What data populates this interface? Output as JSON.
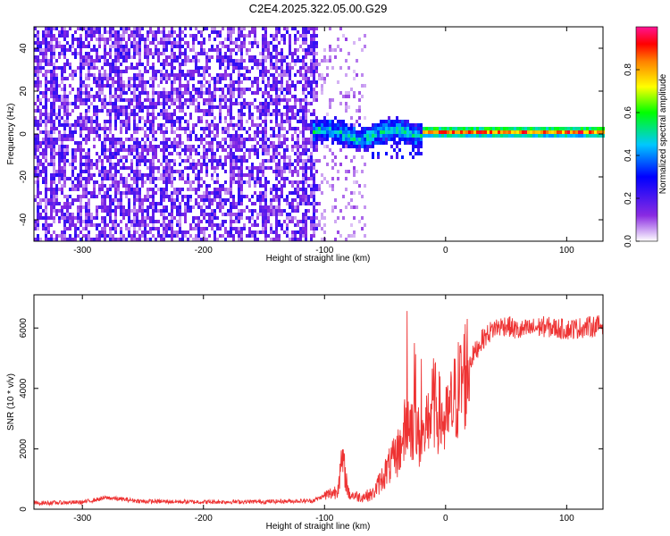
{
  "figure_title": "C2E4.2025.322.05.00.G29",
  "chart_data": [
    {
      "type": "heatmap",
      "name": "spectrogram",
      "xlabel": "Height of straight line (km)",
      "ylabel": "Frequency (Hz)",
      "xlim": [
        -340,
        130
      ],
      "ylim": [
        -50,
        50
      ],
      "xticks": [
        -300,
        -200,
        -100,
        0,
        100
      ],
      "yticks": [
        -40,
        -20,
        0,
        20,
        40
      ],
      "xtick_labels": [
        "-300",
        "-200",
        "-100",
        "0",
        "100"
      ],
      "ytick_labels": [
        "-40",
        "-20",
        "0",
        "20",
        "40"
      ],
      "colorbar": {
        "label": "Normalized spectral amplitude",
        "range": [
          0,
          1
        ],
        "ticks": [
          0.0,
          0.2,
          0.4,
          0.6,
          0.8
        ],
        "tick_labels": [
          "0.0",
          "0.2",
          "0.4",
          "0.6",
          "0.8"
        ],
        "colormap": [
          "#ffffff",
          "#8a2be2",
          "#0000ff",
          "#00c8ff",
          "#00ff00",
          "#ffff00",
          "#ff8000",
          "#ff0000",
          "#ff1493"
        ]
      },
      "regions": [
        {
          "description": "broadband noise",
          "x_range": [
            -340,
            -110
          ],
          "freq_range": [
            -50,
            50
          ],
          "amplitude": [
            0.05,
            0.25
          ]
        },
        {
          "description": "signal onset band",
          "x_range": [
            -110,
            -20
          ],
          "center_freq": 0,
          "width_hz": 8,
          "amplitude": [
            0.3,
            0.6
          ]
        },
        {
          "description": "steady carrier",
          "x_range": [
            -20,
            130
          ],
          "center_freq": 1,
          "width_hz": 3,
          "amplitude": [
            0.8,
            1.0
          ]
        }
      ]
    },
    {
      "type": "line",
      "name": "snr",
      "xlabel": "Height of straight line (km)",
      "ylabel": "SNR (10 * v/v)",
      "xlim": [
        -340,
        130
      ],
      "ylim": [
        0,
        7100
      ],
      "xticks": [
        -300,
        -200,
        -100,
        0,
        100
      ],
      "yticks": [
        0,
        2000,
        4000,
        6000
      ],
      "xtick_labels": [
        "-300",
        "-200",
        "-100",
        "0",
        "100"
      ],
      "ytick_labels": [
        "0",
        "2000",
        "4000",
        "6000"
      ],
      "color": "#ee3333",
      "series": [
        {
          "name": "SNR",
          "x": [
            -340,
            -300,
            -280,
            -250,
            -200,
            -150,
            -110,
            -90,
            -85,
            -80,
            -70,
            -60,
            -50,
            -40,
            -30,
            -20,
            -10,
            0,
            10,
            20,
            30,
            40,
            50,
            60,
            80,
            100,
            130
          ],
          "y": [
            200,
            230,
            380,
            260,
            240,
            250,
            280,
            600,
            1600,
            500,
            400,
            500,
            1200,
            1800,
            3000,
            2200,
            3500,
            2800,
            3900,
            4900,
            5600,
            6000,
            6100,
            5900,
            6050,
            5950,
            6100
          ]
        }
      ]
    }
  ]
}
